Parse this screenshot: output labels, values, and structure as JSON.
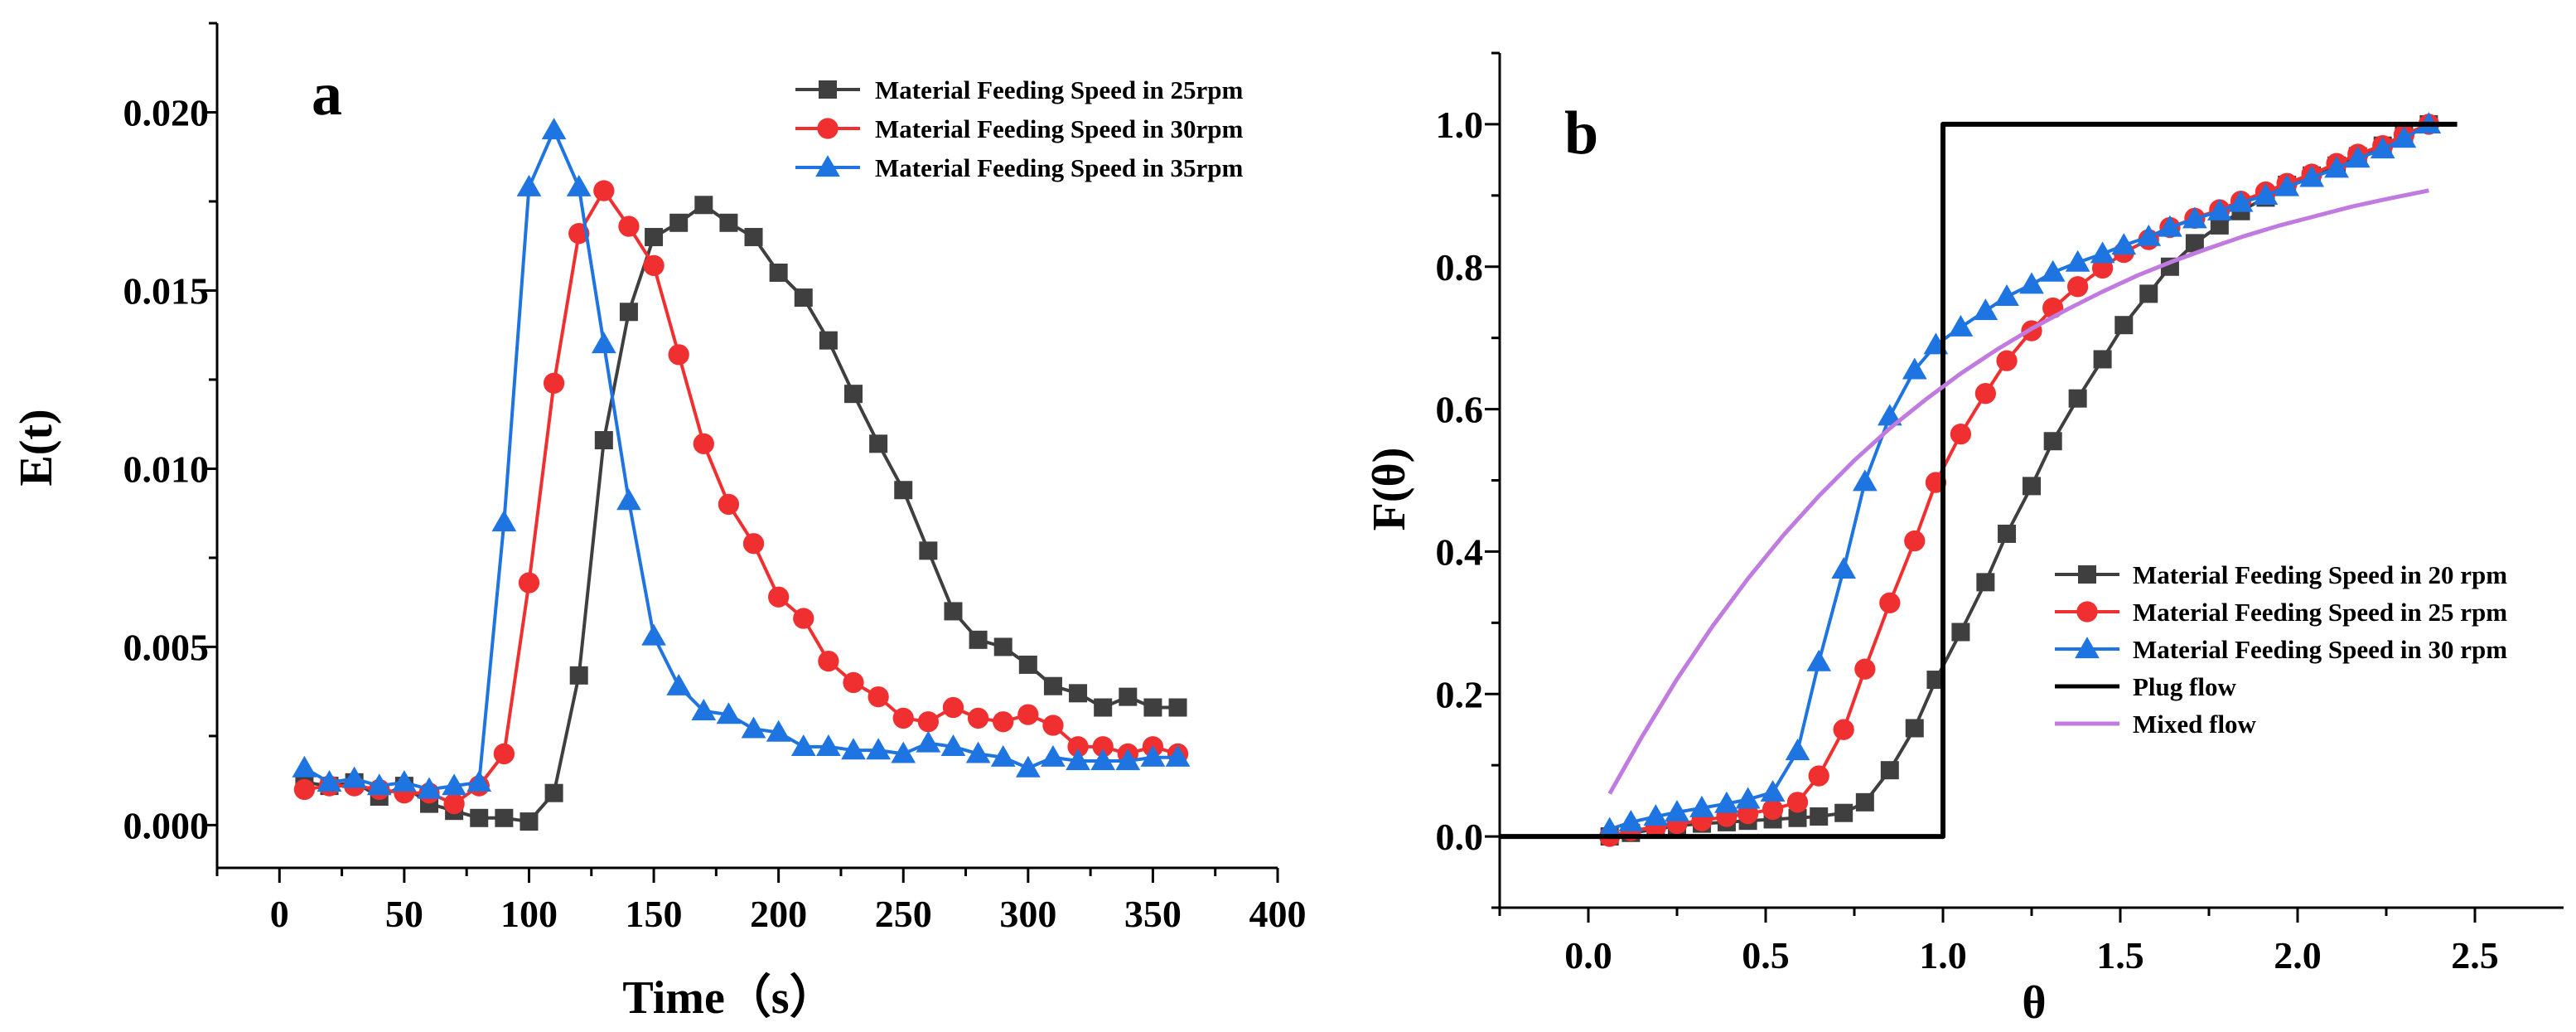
{
  "chart_data": [
    {
      "type": "line",
      "panel_label": "a",
      "xlabel": "Time（s）",
      "ylabel": "E(t)",
      "xlim": [
        -25,
        400
      ],
      "ylim": [
        -0.0012,
        0.0225
      ],
      "xticks": [
        0,
        50,
        100,
        150,
        200,
        250,
        300,
        350,
        400
      ],
      "yticks": [
        0.0,
        0.005,
        0.01,
        0.015,
        0.02
      ],
      "ytick_labels": [
        "0.000",
        "0.005",
        "0.010",
        "0.015",
        "0.020"
      ],
      "legend_position": "top-right",
      "series": [
        {
          "name": "Material Feeding Speed in 25rpm",
          "color": "#3f3f3f",
          "marker": "square",
          "x": [
            10,
            20,
            30,
            40,
            50,
            60,
            70,
            80,
            90,
            100,
            110,
            120,
            130,
            140,
            150,
            160,
            170,
            180,
            190,
            200,
            210,
            220,
            230,
            240,
            250,
            260,
            270,
            280,
            290,
            300,
            310,
            320,
            330,
            340,
            350,
            360
          ],
          "y": [
            0.0012,
            0.0011,
            0.0012,
            0.0008,
            0.0011,
            0.0006,
            0.0004,
            0.0002,
            0.0002,
            0.0001,
            0.0009,
            0.0042,
            0.0108,
            0.0144,
            0.0165,
            0.0169,
            0.0174,
            0.0169,
            0.0165,
            0.0155,
            0.0148,
            0.0136,
            0.0121,
            0.0107,
            0.0094,
            0.0077,
            0.006,
            0.0052,
            0.005,
            0.0045,
            0.0039,
            0.0037,
            0.0033,
            0.0036,
            0.0033,
            0.0033
          ]
        },
        {
          "name": "Material Feeding Speed in 30rpm",
          "color": "#f03030",
          "marker": "circle",
          "x": [
            10,
            20,
            30,
            40,
            50,
            60,
            70,
            80,
            90,
            100,
            110,
            120,
            130,
            140,
            150,
            160,
            170,
            180,
            190,
            200,
            210,
            220,
            230,
            240,
            250,
            260,
            270,
            280,
            290,
            300,
            310,
            320,
            330,
            340,
            350,
            360
          ],
          "y": [
            0.001,
            0.0011,
            0.0011,
            0.001,
            0.0009,
            0.0009,
            0.0006,
            0.0011,
            0.002,
            0.0068,
            0.0124,
            0.0166,
            0.0178,
            0.0168,
            0.0157,
            0.0132,
            0.0107,
            0.009,
            0.0079,
            0.0064,
            0.0058,
            0.0046,
            0.004,
            0.0036,
            0.003,
            0.0029,
            0.0033,
            0.003,
            0.0029,
            0.0031,
            0.0028,
            0.0022,
            0.0022,
            0.002,
            0.0022,
            0.002
          ]
        },
        {
          "name": "Material Feeding Speed in 35rpm",
          "color": "#1e74e0",
          "marker": "triangle",
          "x": [
            10,
            20,
            30,
            40,
            50,
            60,
            70,
            80,
            90,
            100,
            110,
            120,
            130,
            140,
            150,
            160,
            170,
            180,
            190,
            200,
            210,
            220,
            230,
            240,
            250,
            260,
            270,
            280,
            290,
            300,
            310,
            320,
            330,
            340,
            350,
            360
          ],
          "y": [
            0.0016,
            0.0012,
            0.0013,
            0.0011,
            0.0012,
            0.001,
            0.0011,
            0.0012,
            0.0085,
            0.0179,
            0.0195,
            0.0179,
            0.0135,
            0.0091,
            0.0053,
            0.0039,
            0.0032,
            0.0031,
            0.0027,
            0.0026,
            0.0022,
            0.0022,
            0.0021,
            0.0021,
            0.002,
            0.0023,
            0.0022,
            0.002,
            0.0019,
            0.0016,
            0.0019,
            0.0018,
            0.0018,
            0.0018,
            0.0019,
            0.0019
          ]
        }
      ]
    },
    {
      "type": "line",
      "panel_label": "b",
      "xlabel": "θ",
      "ylabel": "F(θ)",
      "xlim": [
        -0.25,
        2.75
      ],
      "ylim": [
        -0.1,
        1.1
      ],
      "xticks": [
        0.0,
        0.5,
        1.0,
        1.5,
        2.0,
        2.5
      ],
      "xtick_labels": [
        "0.0",
        "0.5",
        "1.0",
        "1.5",
        "2.0",
        "2.5"
      ],
      "yticks": [
        0.0,
        0.2,
        0.4,
        0.6,
        0.8,
        1.0
      ],
      "ytick_labels": [
        "0.0",
        "0.2",
        "0.4",
        "0.6",
        "0.8",
        "1.0"
      ],
      "legend_position": "bottom-right",
      "series": [
        {
          "name": "Material Feeding Speed in 20 rpm",
          "color": "#3f3f3f",
          "marker": "square",
          "x": [
            0.06,
            0.12,
            0.19,
            0.25,
            0.32,
            0.39,
            0.45,
            0.52,
            0.59,
            0.65,
            0.72,
            0.78,
            0.85,
            0.92,
            0.98,
            1.05,
            1.12,
            1.18,
            1.25,
            1.31,
            1.38,
            1.45,
            1.51,
            1.58,
            1.64,
            1.71,
            1.78,
            1.84,
            1.91,
            1.97,
            2.04,
            2.11,
            2.17,
            2.24,
            2.3,
            2.37
          ],
          "y": [
            0.0,
            0.005,
            0.01,
            0.015,
            0.018,
            0.02,
            0.022,
            0.024,
            0.026,
            0.028,
            0.033,
            0.048,
            0.093,
            0.152,
            0.22,
            0.287,
            0.357,
            0.425,
            0.492,
            0.555,
            0.615,
            0.67,
            0.718,
            0.762,
            0.8,
            0.833,
            0.858,
            0.878,
            0.897,
            0.915,
            0.928,
            0.942,
            0.955,
            0.97,
            0.985,
            1.0
          ]
        },
        {
          "name": "Material Feeding Speed in 25 rpm",
          "color": "#f03030",
          "marker": "circle",
          "x": [
            0.06,
            0.12,
            0.19,
            0.25,
            0.32,
            0.39,
            0.45,
            0.52,
            0.59,
            0.65,
            0.72,
            0.78,
            0.85,
            0.92,
            0.98,
            1.05,
            1.12,
            1.18,
            1.25,
            1.31,
            1.38,
            1.45,
            1.51,
            1.58,
            1.64,
            1.71,
            1.78,
            1.84,
            1.91,
            1.97,
            2.04,
            2.11,
            2.17,
            2.24,
            2.3,
            2.37
          ],
          "y": [
            0.0,
            0.008,
            0.013,
            0.018,
            0.022,
            0.028,
            0.032,
            0.038,
            0.048,
            0.085,
            0.15,
            0.235,
            0.328,
            0.415,
            0.497,
            0.565,
            0.622,
            0.668,
            0.71,
            0.742,
            0.772,
            0.798,
            0.82,
            0.838,
            0.855,
            0.868,
            0.88,
            0.892,
            0.905,
            0.917,
            0.93,
            0.945,
            0.958,
            0.97,
            0.985,
            1.0
          ]
        },
        {
          "name": "Material Feeding Speed in 30 rpm",
          "color": "#1e74e0",
          "marker": "triangle",
          "x": [
            0.06,
            0.12,
            0.19,
            0.25,
            0.32,
            0.39,
            0.45,
            0.52,
            0.59,
            0.65,
            0.72,
            0.78,
            0.85,
            0.92,
            0.98,
            1.05,
            1.12,
            1.18,
            1.25,
            1.31,
            1.38,
            1.45,
            1.51,
            1.58,
            1.64,
            1.71,
            1.78,
            1.84,
            1.91,
            1.97,
            2.04,
            2.11,
            2.17,
            2.24,
            2.3,
            2.37
          ],
          "y": [
            0.01,
            0.02,
            0.028,
            0.034,
            0.04,
            0.046,
            0.052,
            0.062,
            0.12,
            0.245,
            0.375,
            0.498,
            0.59,
            0.655,
            0.69,
            0.715,
            0.738,
            0.758,
            0.775,
            0.792,
            0.806,
            0.818,
            0.83,
            0.842,
            0.855,
            0.867,
            0.878,
            0.89,
            0.9,
            0.912,
            0.925,
            0.938,
            0.952,
            0.965,
            0.98,
            1.0
          ]
        },
        {
          "name": "Plug flow",
          "color": "#000000",
          "marker": "none",
          "x": [
            -0.25,
            1.0,
            1.0,
            2.45
          ],
          "y": [
            0.0,
            0.0,
            1.0,
            1.0
          ]
        },
        {
          "name": "Mixed flow",
          "color": "#c07ae0",
          "marker": "none",
          "x": [
            0.06,
            0.15,
            0.25,
            0.35,
            0.45,
            0.55,
            0.65,
            0.75,
            0.85,
            0.95,
            1.05,
            1.15,
            1.25,
            1.35,
            1.45,
            1.55,
            1.65,
            1.75,
            1.85,
            1.95,
            2.05,
            2.15,
            2.25,
            2.37
          ],
          "y": [
            0.06,
            0.139,
            0.221,
            0.295,
            0.362,
            0.423,
            0.478,
            0.528,
            0.573,
            0.613,
            0.65,
            0.683,
            0.713,
            0.74,
            0.765,
            0.788,
            0.808,
            0.826,
            0.843,
            0.858,
            0.871,
            0.884,
            0.895,
            0.907
          ]
        }
      ]
    }
  ]
}
